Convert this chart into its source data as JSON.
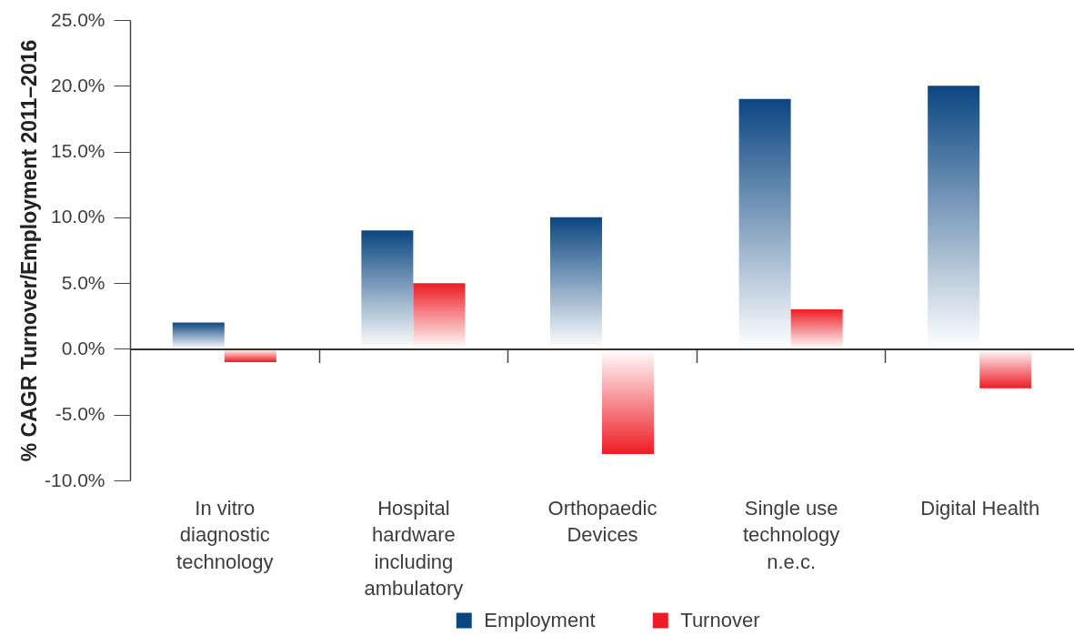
{
  "chart_data": {
    "type": "bar",
    "ylabel": "% CAGR Turnover/Employment 2011–2016",
    "categories": [
      "In vitro diagnostic technology",
      "Hospital hardware including ambulatory",
      "Orthopaedic Devices",
      "Single use technology n.e.c.",
      "Digital Health"
    ],
    "series": [
      {
        "name": "Employment",
        "color": "#0b4681",
        "values": [
          2,
          9,
          10,
          19,
          20
        ]
      },
      {
        "name": "Turnover",
        "color": "#ed1c24",
        "values": [
          -1,
          5,
          -8,
          3,
          -3
        ]
      }
    ],
    "ylim": [
      -10,
      25
    ],
    "yticks": [
      {
        "value": -10,
        "label": "-10.0%"
      },
      {
        "value": -5,
        "label": "-5.0%"
      },
      {
        "value": 0,
        "label": "0.0%"
      },
      {
        "value": 5,
        "label": "5.0%"
      },
      {
        "value": 10,
        "label": "10.0%"
      },
      {
        "value": 15,
        "label": "15.0%"
      },
      {
        "value": 20,
        "label": "20.0%"
      },
      {
        "value": 25,
        "label": "25.0%"
      }
    ],
    "legend": "bottom"
  }
}
